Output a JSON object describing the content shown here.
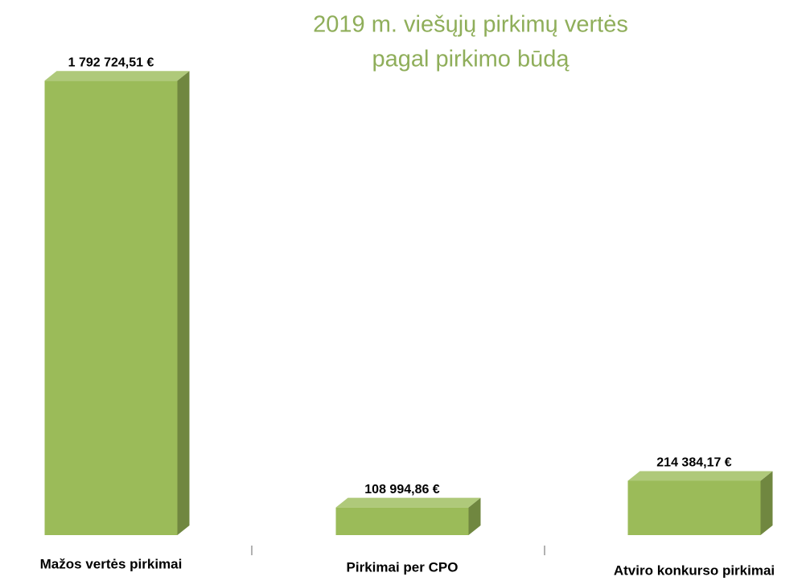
{
  "chart_data": {
    "type": "bar3d",
    "title": [
      "2019 m. viešųjų pirkimų vertės",
      "pagal pirkimo būdą"
    ],
    "categories": [
      "Mažos vertės pirkimai",
      "Pirkimai per CPO",
      "Atviro konkurso pirkimai"
    ],
    "values": [
      1792724.51,
      108994.86,
      214384.17
    ],
    "value_labels": [
      "1 792 724,51 €",
      "108 994,86 €",
      "214 384,17 €"
    ],
    "color": "#9bbb59",
    "ylim": [
      0,
      1800000
    ]
  }
}
